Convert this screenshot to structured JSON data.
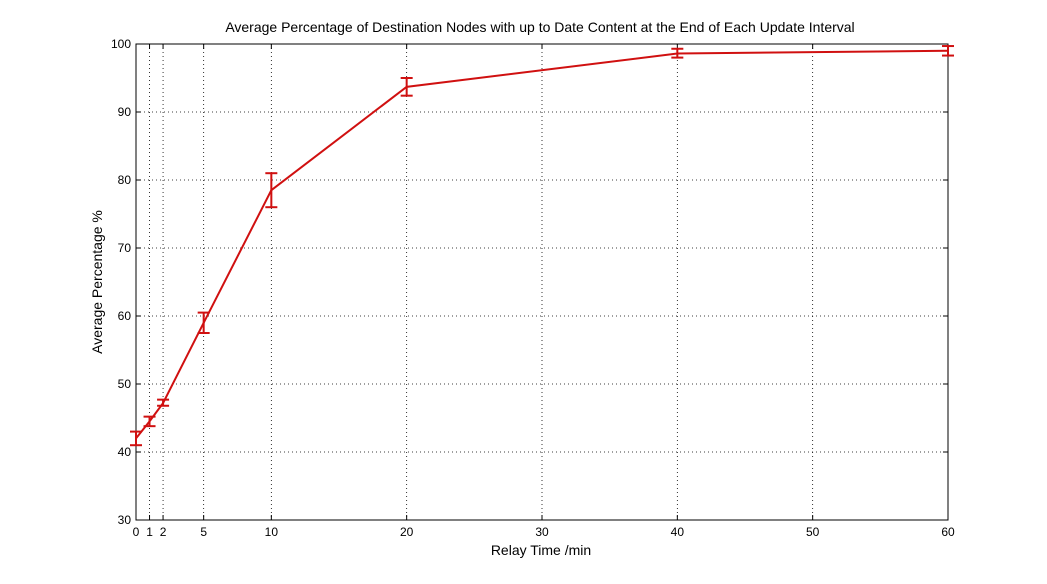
{
  "chart_data": {
    "type": "line",
    "title": "Average Percentage of Destination Nodes with up to Date Content at the End of Each Update Interval",
    "xlabel": "Relay Time /min",
    "ylabel": "Average Percentage %",
    "xlim": [
      0,
      60
    ],
    "ylim": [
      30,
      100
    ],
    "xticks": [
      0,
      1,
      2,
      5,
      10,
      20,
      30,
      40,
      50,
      60
    ],
    "yticks": [
      30,
      40,
      50,
      60,
      70,
      80,
      90,
      100
    ],
    "grid": true,
    "series_color": "#d01010",
    "series": [
      {
        "x": [
          0,
          1,
          2,
          5,
          10,
          20,
          40,
          60
        ],
        "y": [
          42.0,
          44.5,
          47.2,
          59.0,
          78.5,
          93.7,
          98.6,
          99.0
        ],
        "err_low": [
          41.0,
          43.8,
          46.8,
          57.5,
          76.0,
          92.4,
          98.0,
          98.3
        ],
        "err_high": [
          43.0,
          45.2,
          47.7,
          60.5,
          81.0,
          95.0,
          99.3,
          99.7
        ]
      }
    ]
  }
}
